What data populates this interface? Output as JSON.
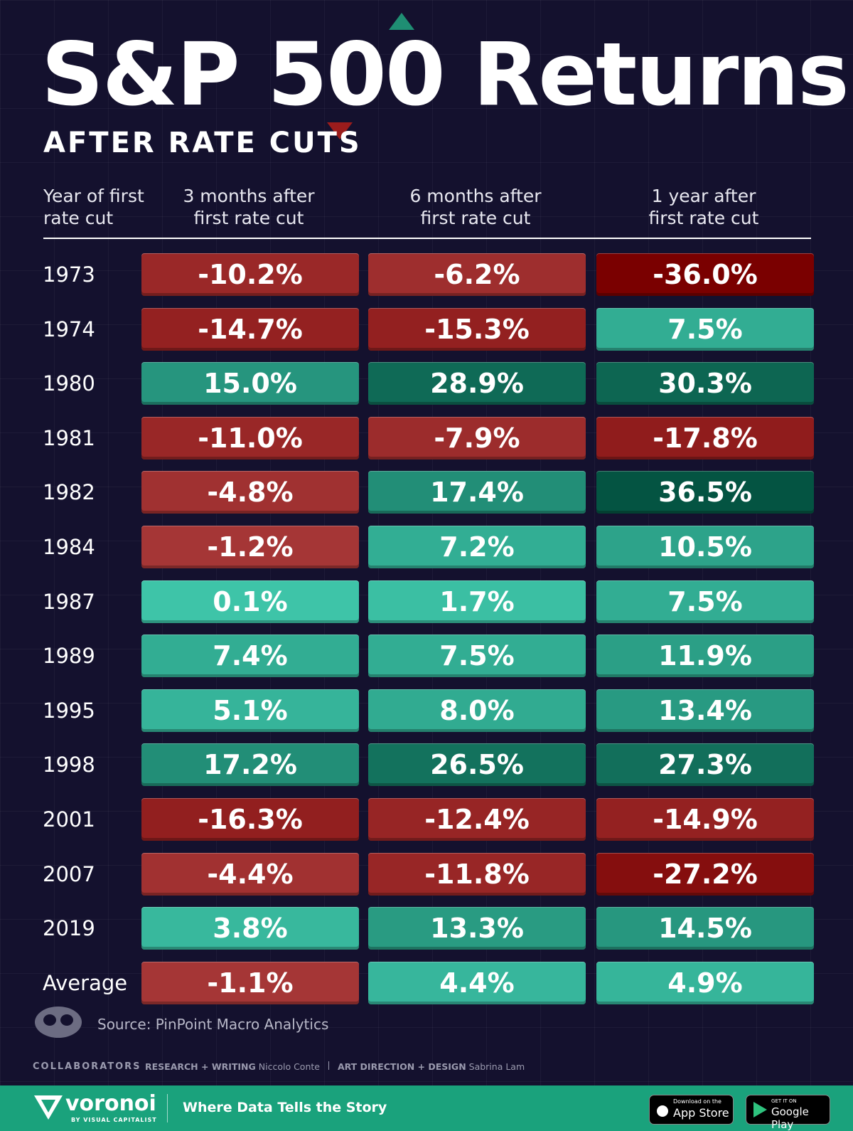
{
  "header": {
    "title": "S&P 500 Returns",
    "subtitle": "AFTER RATE CUTS"
  },
  "table": {
    "columns": [
      "Year of first rate cut",
      "3 months after first rate cut",
      "6 months after first rate cut",
      "1 year after first rate cut"
    ],
    "rows": [
      [
        "1973",
        "-10.2%",
        "-6.2%",
        "-36.0%"
      ],
      [
        "1974",
        "-14.7%",
        "-15.3%",
        "7.5%"
      ],
      [
        "1980",
        "15.0%",
        "28.9%",
        "30.3%"
      ],
      [
        "1981",
        "-11.0%",
        "-7.9%",
        "-17.8%"
      ],
      [
        "1982",
        "-4.8%",
        "17.4%",
        "36.5%"
      ],
      [
        "1984",
        "-1.2%",
        "7.2%",
        "10.5%"
      ],
      [
        "1987",
        "0.1%",
        "1.7%",
        "7.5%"
      ],
      [
        "1989",
        "7.4%",
        "7.5%",
        "11.9%"
      ],
      [
        "1995",
        "5.1%",
        "8.0%",
        "13.4%"
      ],
      [
        "1998",
        "17.2%",
        "26.5%",
        "27.3%"
      ],
      [
        "2001",
        "-16.3%",
        "-12.4%",
        "-14.9%"
      ],
      [
        "2007",
        "-4.4%",
        "-11.8%",
        "-27.2%"
      ],
      [
        "2019",
        "3.8%",
        "13.3%",
        "14.5%"
      ],
      [
        "Average",
        "-1.1%",
        "4.4%",
        "4.9%"
      ]
    ]
  },
  "footer": {
    "source": "Source: PinPoint Macro Analytics",
    "collaborators": "COLLABORATORS",
    "credits": [
      {
        "role": "RESEARCH + WRITING",
        "name": "Niccolo Conte"
      },
      {
        "role": "ART DIRECTION + DESIGN",
        "name": "Sabrina Lam"
      }
    ],
    "brand": "voronoi",
    "brand_sub": "BY VISUAL CAPITALIST",
    "tagline": "Where Data Tells the Story",
    "app_store": {
      "small": "Download on the",
      "big": "App Store"
    },
    "google_play": {
      "small": "GET IT ON",
      "big": "Google Play"
    }
  }
}
